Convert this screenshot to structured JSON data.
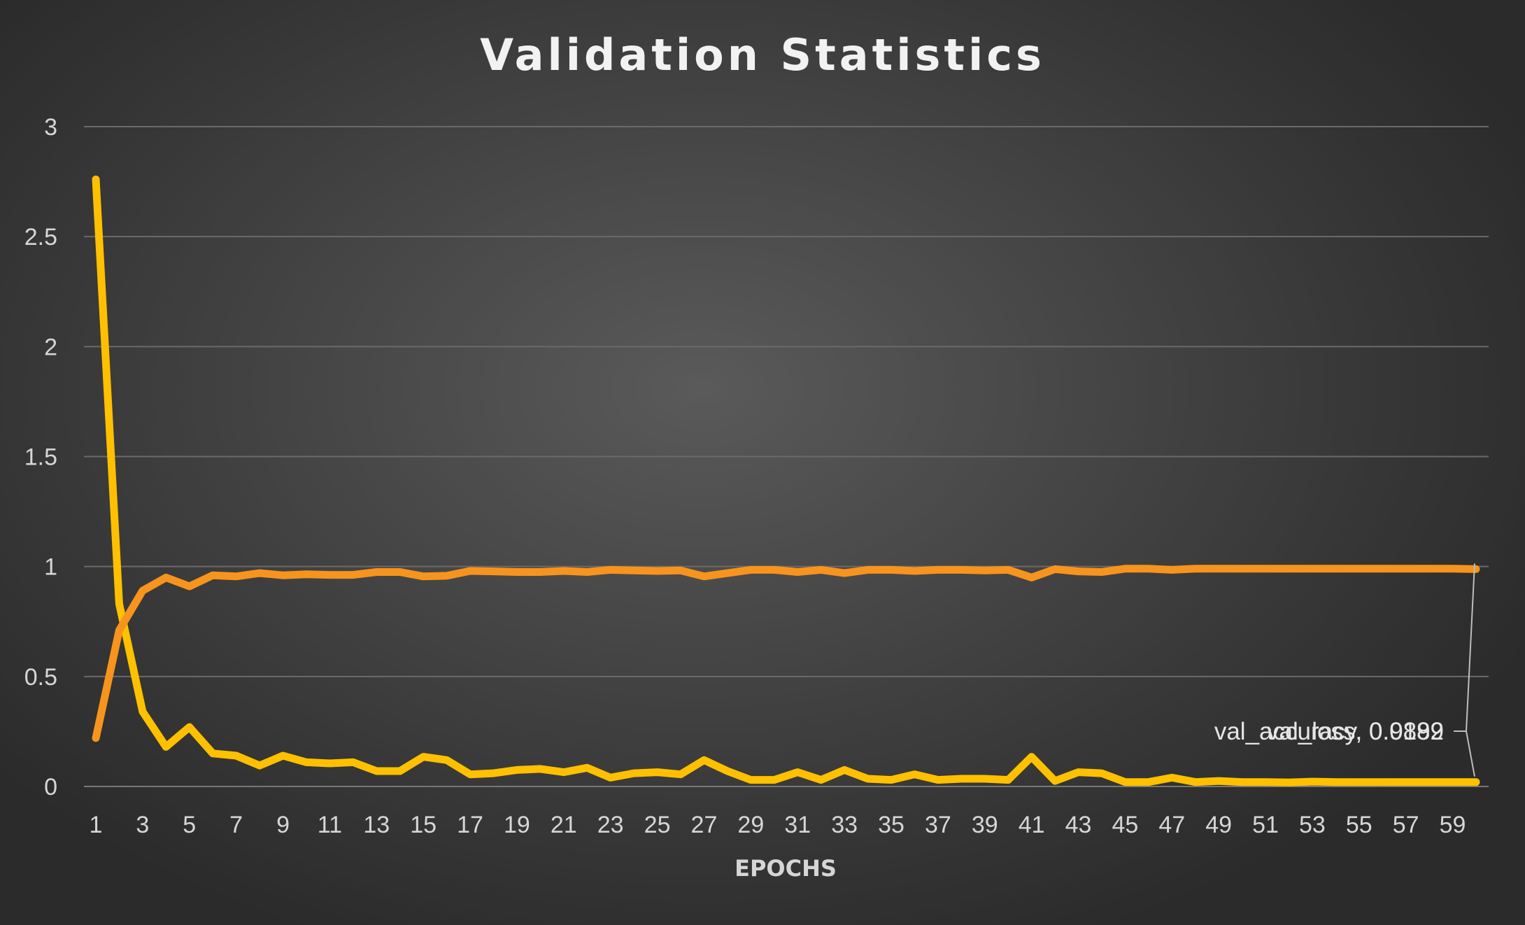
{
  "chart_data": {
    "type": "line",
    "title": "Validation Statistics",
    "xlabel": "EPOCHS",
    "ylabel": "",
    "ylim": [
      0,
      3
    ],
    "yticks": [
      "0",
      "0.5",
      "1",
      "1.5",
      "2",
      "2.5",
      "3"
    ],
    "x": [
      1,
      2,
      3,
      4,
      5,
      6,
      7,
      8,
      9,
      10,
      11,
      12,
      13,
      14,
      15,
      16,
      17,
      18,
      19,
      20,
      21,
      22,
      23,
      24,
      25,
      26,
      27,
      28,
      29,
      30,
      31,
      32,
      33,
      34,
      35,
      36,
      37,
      38,
      39,
      40,
      41,
      42,
      43,
      44,
      45,
      46,
      47,
      48,
      49,
      50,
      51,
      52,
      53,
      54,
      55,
      56,
      57,
      58,
      59,
      60
    ],
    "xticks": [
      "1",
      "3",
      "5",
      "7",
      "9",
      "11",
      "13",
      "15",
      "17",
      "19",
      "21",
      "23",
      "25",
      "27",
      "29",
      "31",
      "33",
      "35",
      "37",
      "39",
      "41",
      "43",
      "45",
      "47",
      "49",
      "51",
      "53",
      "55",
      "57",
      "59"
    ],
    "gridlines": true,
    "legend": "none",
    "series": [
      {
        "name": "val_loss",
        "color": "#ffc000",
        "values": [
          2.76,
          0.83,
          0.34,
          0.18,
          0.27,
          0.15,
          0.14,
          0.095,
          0.14,
          0.11,
          0.105,
          0.11,
          0.07,
          0.07,
          0.135,
          0.12,
          0.055,
          0.06,
          0.075,
          0.08,
          0.065,
          0.085,
          0.04,
          0.06,
          0.065,
          0.055,
          0.12,
          0.07,
          0.03,
          0.03,
          0.065,
          0.03,
          0.075,
          0.035,
          0.03,
          0.055,
          0.03,
          0.035,
          0.035,
          0.03,
          0.135,
          0.025,
          0.065,
          0.06,
          0.02,
          0.02,
          0.04,
          0.02,
          0.025,
          0.02,
          0.02,
          0.018,
          0.022,
          0.02,
          0.02,
          0.02,
          0.02,
          0.02,
          0.02,
          0.0199
        ],
        "end_label": "val_loss, 0.0199"
      },
      {
        "name": "val_accuracy",
        "color": "#f7941d",
        "values": [
          0.22,
          0.71,
          0.89,
          0.95,
          0.91,
          0.96,
          0.955,
          0.97,
          0.96,
          0.965,
          0.962,
          0.962,
          0.975,
          0.975,
          0.955,
          0.958,
          0.98,
          0.978,
          0.975,
          0.975,
          0.98,
          0.975,
          0.985,
          0.982,
          0.98,
          0.982,
          0.955,
          0.97,
          0.985,
          0.985,
          0.975,
          0.985,
          0.97,
          0.985,
          0.985,
          0.98,
          0.985,
          0.985,
          0.982,
          0.985,
          0.95,
          0.988,
          0.978,
          0.975,
          0.99,
          0.99,
          0.985,
          0.99,
          0.99,
          0.99,
          0.99,
          0.99,
          0.99,
          0.99,
          0.99,
          0.99,
          0.99,
          0.99,
          0.99,
          0.9882
        ],
        "end_label": "val_accuracy, 0.9882"
      }
    ]
  }
}
